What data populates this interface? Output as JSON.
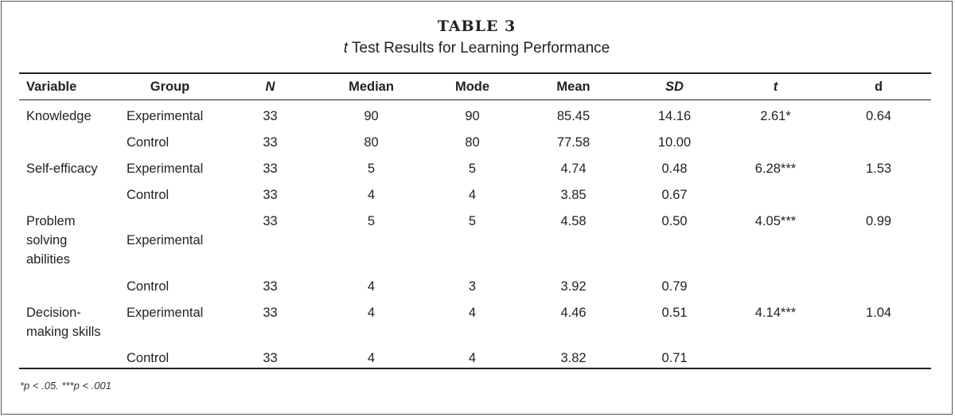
{
  "caption": {
    "label": "TABLE 3",
    "title_italic": "t",
    "title_rest": " Test Results for Learning Performance"
  },
  "columns": [
    "Variable",
    "Group",
    "N",
    "Median",
    "Mode",
    "Mean",
    "SD",
    "t",
    "d"
  ],
  "rows": [
    {
      "variable": "Knowledge",
      "group": "Experimental",
      "n": "33",
      "median": "90",
      "mode": "90",
      "mean": "85.45",
      "sd": "14.16",
      "t": "2.61*",
      "d": "0.64"
    },
    {
      "variable": "",
      "group": "Control",
      "n": "33",
      "median": "80",
      "mode": "80",
      "mean": "77.58",
      "sd": "10.00",
      "t": "",
      "d": ""
    },
    {
      "variable": "Self-efficacy",
      "group": "Experimental",
      "n": "33",
      "median": "5",
      "mode": "5",
      "mean": "4.74",
      "sd": "0.48",
      "t": "6.28***",
      "d": "1.53"
    },
    {
      "variable": "",
      "group": "Control",
      "n": "33",
      "median": "4",
      "mode": "4",
      "mean": "3.85",
      "sd": "0.67",
      "t": "",
      "d": ""
    },
    {
      "variable": "Problem solving abilities",
      "group": "Experimental",
      "n": "33",
      "median": "5",
      "mode": "5",
      "mean": "4.58",
      "sd": "0.50",
      "t": "4.05***",
      "d": "0.99"
    },
    {
      "variable": "",
      "group": "Control",
      "n": "33",
      "median": "4",
      "mode": "3",
      "mean": "3.92",
      "sd": "0.79",
      "t": "",
      "d": ""
    },
    {
      "variable": "Decision-making skills",
      "group": "Experimental",
      "n": "33",
      "median": "4",
      "mode": "4",
      "mean": "4.46",
      "sd": "0.51",
      "t": "4.14***",
      "d": "1.04"
    },
    {
      "variable": "",
      "group": "Control",
      "n": "33",
      "median": "4",
      "mode": "4",
      "mean": "3.82",
      "sd": "0.71",
      "t": "",
      "d": ""
    }
  ],
  "footnote": "*p < .05. ***p < .001"
}
